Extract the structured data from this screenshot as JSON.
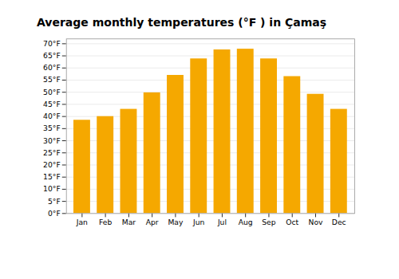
{
  "chart_data": {
    "type": "bar",
    "title": "Average monthly temperatures (°F ) in Çamaş",
    "categories": [
      "Jan",
      "Feb",
      "Mar",
      "Apr",
      "May",
      "Jun",
      "Jul",
      "Aug",
      "Sep",
      "Oct",
      "Nov",
      "Dec"
    ],
    "values": [
      38.5,
      40.0,
      43.0,
      49.8,
      57.0,
      63.8,
      67.5,
      67.8,
      63.8,
      56.5,
      49.2,
      43.0
    ],
    "color": "#F5A800",
    "ylim": [
      0,
      72
    ],
    "yticks": [
      {
        "value": 0,
        "label": "0°F"
      },
      {
        "value": 5,
        "label": "5°F"
      },
      {
        "value": 10,
        "label": "10°F"
      },
      {
        "value": 15,
        "label": "15°F"
      },
      {
        "value": 20,
        "label": "20°F"
      },
      {
        "value": 25,
        "label": "25°F"
      },
      {
        "value": 30,
        "label": "30°F"
      },
      {
        "value": 35,
        "label": "35°F"
      },
      {
        "value": 40,
        "label": "40°F"
      },
      {
        "value": 45,
        "label": "45°F"
      },
      {
        "value": 50,
        "label": "50°F"
      },
      {
        "value": 55,
        "label": "55°F"
      },
      {
        "value": 60,
        "label": "60°F"
      },
      {
        "value": 65,
        "label": "65°F"
      },
      {
        "value": 70,
        "label": "70°F"
      }
    ],
    "grid": true
  }
}
